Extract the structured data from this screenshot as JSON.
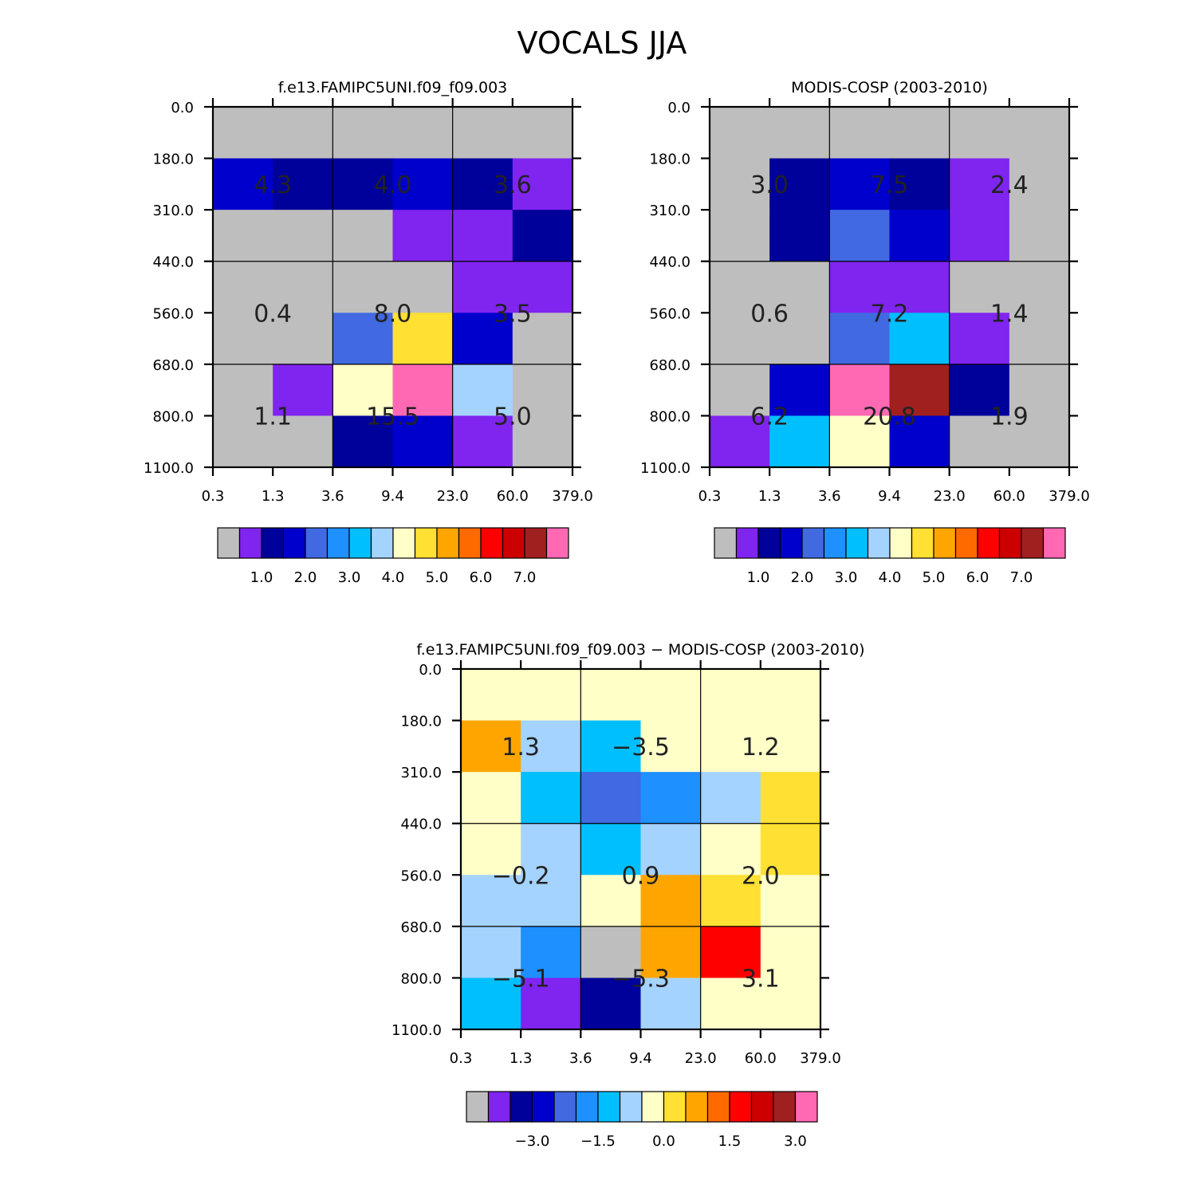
{
  "figure_title": "VOCALS JJA",
  "chart_data": [
    {
      "type": "heatmap",
      "title": "f.e13.FAMIPC5UNI.f09_f09.003",
      "x_edges": [
        "0.3",
        "1.3",
        "3.6",
        "9.4",
        "23.0",
        "60.0",
        "379.0"
      ],
      "y_edges": [
        "0.0",
        "180.0",
        "310.0",
        "440.0",
        "560.0",
        "680.0",
        "800.0",
        "1100.0"
      ],
      "cells": [
        [
          0,
          0,
          0,
          0,
          0,
          0
        ],
        [
          3,
          2,
          2,
          3,
          2,
          1
        ],
        [
          0,
          0,
          0,
          1,
          1,
          2
        ],
        [
          0,
          0,
          0,
          0,
          1,
          1
        ],
        [
          0,
          0,
          4,
          9,
          3,
          0
        ],
        [
          0,
          1,
          8,
          15,
          7,
          0
        ],
        [
          0,
          0,
          2,
          3,
          1,
          0
        ]
      ],
      "labels": [
        [
          "4.3",
          "4.0",
          "3.6"
        ],
        [
          "0.4",
          "8.0",
          "3.5"
        ],
        [
          "1.1",
          "15.5",
          "5.0"
        ]
      ],
      "colorbar": {
        "ticks": [
          "1.0",
          "2.0",
          "3.0",
          "4.0",
          "5.0",
          "6.0",
          "7.0"
        ]
      }
    },
    {
      "type": "heatmap",
      "title": "MODIS-COSP (2003-2010)",
      "x_edges": [
        "0.3",
        "1.3",
        "3.6",
        "9.4",
        "23.0",
        "60.0",
        "379.0"
      ],
      "y_edges": [
        "0.0",
        "180.0",
        "310.0",
        "440.0",
        "560.0",
        "680.0",
        "800.0",
        "1100.0"
      ],
      "cells": [
        [
          0,
          0,
          0,
          0,
          0,
          0
        ],
        [
          0,
          2,
          3,
          2,
          1,
          0
        ],
        [
          0,
          2,
          4,
          3,
          1,
          0
        ],
        [
          0,
          0,
          1,
          1,
          0,
          0
        ],
        [
          0,
          0,
          4,
          6,
          1,
          0
        ],
        [
          0,
          3,
          15,
          14,
          2,
          0
        ],
        [
          1,
          6,
          8,
          3,
          0,
          0
        ]
      ],
      "labels": [
        [
          "3.0",
          "7.5",
          "2.4"
        ],
        [
          "0.6",
          "7.2",
          "1.4"
        ],
        [
          "6.2",
          "20.8",
          "1.9"
        ]
      ],
      "colorbar": {
        "ticks": [
          "1.0",
          "2.0",
          "3.0",
          "4.0",
          "5.0",
          "6.0",
          "7.0"
        ]
      }
    },
    {
      "type": "heatmap",
      "title": "f.e13.FAMIPC5UNI.f09_f09.003 − MODIS-COSP (2003-2010)",
      "x_edges": [
        "0.3",
        "1.3",
        "3.6",
        "9.4",
        "23.0",
        "60.0",
        "379.0"
      ],
      "y_edges": [
        "0.0",
        "180.0",
        "310.0",
        "440.0",
        "560.0",
        "680.0",
        "800.0",
        "1100.0"
      ],
      "cells": [
        [
          8,
          8,
          8,
          8,
          8,
          8
        ],
        [
          10,
          7,
          6,
          8,
          8,
          8
        ],
        [
          8,
          6,
          4,
          5,
          7,
          9
        ],
        [
          8,
          7,
          6,
          7,
          8,
          9
        ],
        [
          7,
          7,
          8,
          10,
          9,
          8
        ],
        [
          7,
          5,
          0,
          10,
          12,
          8
        ],
        [
          6,
          1,
          2,
          7,
          8,
          8
        ]
      ],
      "labels": [
        [
          "1.3",
          "−3.5",
          "1.2"
        ],
        [
          "−0.2",
          "0.9",
          "2.0"
        ],
        [
          "−5.1",
          "−5.3",
          "3.1"
        ]
      ],
      "colorbar": {
        "ticks": [
          "−3.0",
          "−1.5",
          "0.0",
          "1.5",
          "3.0"
        ]
      }
    }
  ],
  "palette": [
    "#bebebe",
    "#8024f0",
    "#00009a",
    "#0000cd",
    "#4169e1",
    "#1e90ff",
    "#00bfff",
    "#a4d3ff",
    "#ffffc8",
    "#ffe033",
    "#ffa500",
    "#ff6a00",
    "#ff0000",
    "#cd0000",
    "#a02020",
    "#ff69b4"
  ]
}
